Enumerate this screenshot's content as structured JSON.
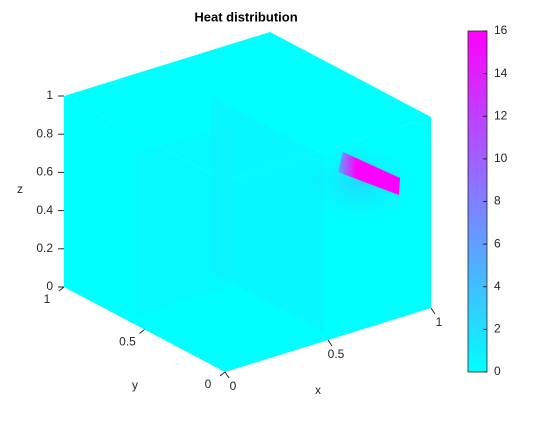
{
  "chart_data": {
    "type": "volume",
    "title": "Heat distribution",
    "x_label": "x",
    "y_label": "y",
    "z_label": "z",
    "xlim": [
      0,
      1
    ],
    "xticks": [
      0,
      0.5,
      1
    ],
    "ylim": [
      0,
      1
    ],
    "yticks": [
      0,
      0.5,
      1
    ],
    "zlim": [
      0,
      1
    ],
    "zticks": [
      0,
      0.2,
      0.4,
      0.6,
      0.8,
      1
    ],
    "colormap": [
      "#00ffff",
      "#ff00ff"
    ],
    "clim": [
      0,
      16
    ],
    "cticks": [
      0,
      2,
      4,
      6,
      8,
      10,
      12,
      14,
      16
    ]
  }
}
